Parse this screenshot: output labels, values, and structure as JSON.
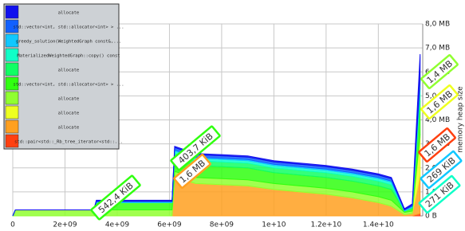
{
  "chart_data": {
    "type": "stacked_area",
    "y_axis_label": "memory heap size",
    "x": [
      0,
      100000000,
      3100000000,
      3200000000,
      6100000000,
      6200000000,
      7000000000,
      8000000000,
      9000000000,
      10000000000,
      11000000000,
      12000000000,
      13000000000,
      14000000000,
      14500000000,
      15000000000,
      15300000000,
      15600000000
    ],
    "xlim": [
      0,
      15700000000
    ],
    "xticks": [
      0,
      {
        "value": 2000000000,
        "label": "2e+09"
      },
      {
        "value": 4000000000,
        "label": "4e+09"
      },
      {
        "value": 6000000000,
        "label": "6e+09"
      },
      {
        "value": 8000000000,
        "label": "8e+09"
      },
      {
        "value": 10000000000,
        "label": "1e+10"
      },
      {
        "value": 12000000000,
        "label": "1.2e+10"
      },
      {
        "value": 14000000000,
        "label": "1.4e+10"
      }
    ],
    "ylim": [
      0,
      8
    ],
    "yticks": [
      {
        "value": 0,
        "label": "0 B"
      },
      {
        "value": 1,
        "label": "1,0 MB"
      },
      {
        "value": 2,
        "label": "2,0 MB"
      },
      {
        "value": 3,
        "label": "3,0 MB"
      },
      {
        "value": 4,
        "label": "4,0 MB"
      },
      {
        "value": 5,
        "label": "5,0 MB"
      },
      {
        "value": 6,
        "label": "6,0 MB"
      },
      {
        "value": 7,
        "label": "7,0 MB"
      },
      {
        "value": 8,
        "label": "8,0 MB"
      }
    ],
    "grid": true,
    "legend": "top-left",
    "series": [
      {
        "name": "allocate",
        "color": "#1010ee",
        "values": [
          0,
          0,
          0,
          0.05,
          0.05,
          0.05,
          0.05,
          0.05,
          0.05,
          0.05,
          0.05,
          0.05,
          0.05,
          0.05,
          0.05,
          0.05,
          0.05,
          1.0
        ]
      },
      {
        "name": "std::vector<int, std::allocator<int> > ...",
        "color": "#1060ff",
        "values": [
          0,
          0,
          0,
          0,
          0,
          0.1,
          0.1,
          0.1,
          0.1,
          0.1,
          0.1,
          0.1,
          0.1,
          0.1,
          0.1,
          0,
          0.05,
          0.1
        ]
      },
      {
        "name": "greedy_solution(WeightedGraph const&,...",
        "color": "#10c8ff",
        "values": [
          0,
          0,
          0,
          0.05,
          0.05,
          0.05,
          0.05,
          0.05,
          0.05,
          0.05,
          0.05,
          0.05,
          0.05,
          0.05,
          0.05,
          0.05,
          0.05,
          0.3
        ]
      },
      {
        "name": "MaterializedWeightedGraph::copy() const",
        "color": "#10ffc8",
        "values": [
          0,
          0,
          0,
          0,
          0,
          0.1,
          0.1,
          0.1,
          0.1,
          0.1,
          0.1,
          0.1,
          0.1,
          0.1,
          0.1,
          0,
          0,
          0.27
        ]
      },
      {
        "name": "allocate",
        "color": "#10ff64",
        "values": [
          0,
          0,
          0,
          0,
          0,
          0.2,
          0.2,
          0.2,
          0.2,
          0.2,
          0.2,
          0.2,
          0.2,
          0.2,
          0.2,
          0,
          0.05,
          0.27
        ]
      },
      {
        "name": "std::vector<int, std::allocator<int> > ...",
        "color": "#30ff10",
        "values": [
          0,
          0,
          0,
          0.3,
          0.3,
          0.55,
          0.5,
          0.5,
          0.5,
          0.45,
          0.45,
          0.45,
          0.45,
          0.45,
          0.45,
          0.05,
          0.1,
          1.4
        ]
      },
      {
        "name": "allocate",
        "color": "#90ff30",
        "values": [
          0,
          0.25,
          0.25,
          0.25,
          0.25,
          0.25,
          0.25,
          0.25,
          0.25,
          0.25,
          0.25,
          0.25,
          0.25,
          0.25,
          0.25,
          0.1,
          0.1,
          0.1
        ]
      },
      {
        "name": "allocate",
        "color": "#eeff20",
        "values": [
          0,
          0,
          0,
          0,
          0,
          0,
          0,
          0,
          0,
          0,
          0,
          0,
          0,
          0,
          0,
          0,
          0,
          1.6
        ]
      },
      {
        "name": "allocate",
        "color": "#ffa020",
        "values": [
          0,
          0,
          0,
          0,
          0,
          1.6,
          1.35,
          1.3,
          1.25,
          1.1,
          1.0,
          0.9,
          0.75,
          0.55,
          0.4,
          0.05,
          0.1,
          1.6
        ]
      },
      {
        "name": "std::pair<std::_Rb_tree_iterator<std::...",
        "color": "#ff4010",
        "values": [
          0,
          0,
          0,
          0,
          0,
          0,
          0,
          0,
          0,
          0,
          0,
          0,
          0,
          0,
          0,
          0,
          0,
          0.1
        ]
      }
    ],
    "annotations": [
      {
        "text": "542,4 KiB",
        "color": "#30ff10"
      },
      {
        "text": "403,7 KiB",
        "color": "#30ff10"
      },
      {
        "text": "1,6 MB",
        "color": "#ffa020"
      },
      {
        "text": "1,4 MB",
        "color": "#90ff30"
      },
      {
        "text": "1,6 MB",
        "color": "#eeff20"
      },
      {
        "text": "1,6 MB",
        "color": "#ff4010"
      },
      {
        "text": "269 KiB",
        "color": "#10c8ff"
      },
      {
        "text": "271 KiB",
        "color": "#10ffc8"
      }
    ]
  }
}
